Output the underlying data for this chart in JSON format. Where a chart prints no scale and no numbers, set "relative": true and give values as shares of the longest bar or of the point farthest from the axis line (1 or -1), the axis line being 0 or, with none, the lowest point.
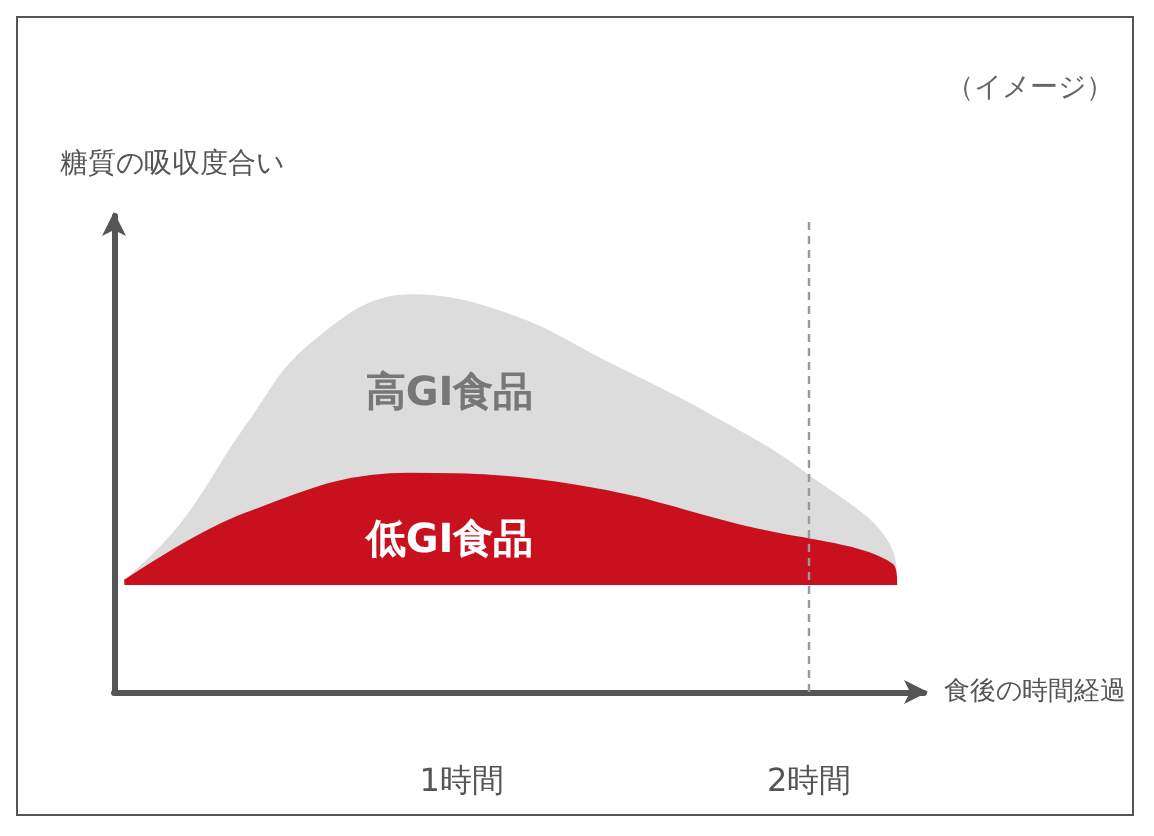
{
  "chart_data": {
    "type": "area",
    "relative": true,
    "xlabel": "食後の時間経過",
    "ylabel": "糖質の吸収度合い",
    "annotations": [
      "（イメージ）"
    ],
    "xlim": [
      0,
      2.33
    ],
    "xticks": [
      {
        "value": 1,
        "label": "1時間"
      },
      {
        "value": 2,
        "label": "2時間"
      }
    ],
    "ref_lines": [
      {
        "axis": "x",
        "value": 2,
        "color": "#999999",
        "line_style": "dashed"
      }
    ],
    "series": [
      {
        "name": "高GI食品",
        "color": "#dcdcdc",
        "x": [
          0.03,
          0.19,
          0.38,
          0.57,
          0.85,
          1.14,
          1.42,
          1.71,
          1.99,
          2.24,
          2.25
        ],
        "values": [
          0.28,
          0.42,
          0.67,
          0.88,
          1.0,
          0.95,
          0.83,
          0.7,
          0.55,
          0.35,
          0.27
        ]
      },
      {
        "name": "低GI食品",
        "color": "#c8101e",
        "x": [
          0.03,
          0.38,
          0.85,
          1.33,
          1.8,
          2.24,
          2.25
        ],
        "values": [
          0.28,
          0.45,
          0.55,
          0.52,
          0.42,
          0.32,
          0.27
        ]
      }
    ]
  }
}
